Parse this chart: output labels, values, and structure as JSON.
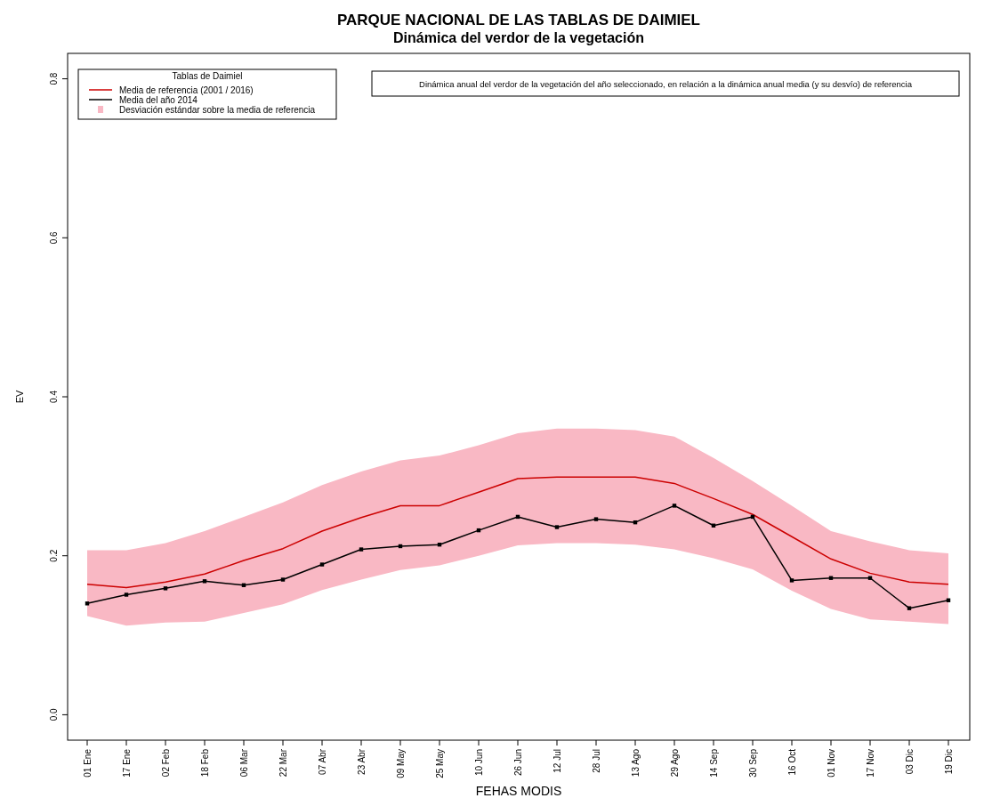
{
  "chart_data": {
    "type": "line",
    "title": "PARQUE NACIONAL DE LAS TABLAS DE DAIMIEL",
    "subtitle": "Dinámica del verdor de la vegetación",
    "xlabel": "FEHAS MODIS",
    "ylabel": "EV",
    "legend_title": "Tablas de Daimiel",
    "legend": "top left",
    "grid": false,
    "annotations": [
      "Dinámica anual del verdor de la vegetación del año seleccionado, en relación a la dinámica anual media (y su desvío) de referencia",
      "Desviación estándar sobre la media de referencia"
    ],
    "categories": [
      "01 Ene",
      "17 Ene",
      "02 Feb",
      "18 Feb",
      "06 Mar",
      "22 Mar",
      "07 Abr",
      "23 Abr",
      "09 May",
      "25 May",
      "10 Jun",
      "26 Jun",
      "12 Jul",
      "28 Jul",
      "13 Ago",
      "29 Ago",
      "14 Sep",
      "30 Sep",
      "16 Oct",
      "01 Nov",
      "17 Nov",
      "03 Dic",
      "19 Dic"
    ],
    "ylim": [
      -0.032,
      0.832
    ],
    "yticks": [
      {
        "value": 0,
        "label": "0.0"
      },
      0.2,
      0.4,
      0.6,
      0.8
    ],
    "series": [
      {
        "name": "Media de referencia (2001 / 2016)",
        "color": "#cc0000",
        "marker": "none",
        "values": [
          0.164,
          0.16,
          0.167,
          0.177,
          0.194,
          0.209,
          0.231,
          0.248,
          0.263,
          0.263,
          0.28,
          0.297,
          0.299,
          0.299,
          0.299,
          0.291,
          0.272,
          0.252,
          0.224,
          0.196,
          0.178,
          0.167,
          0.164
        ],
        "lower": [
          0.124,
          0.112,
          0.116,
          0.117,
          0.128,
          0.139,
          0.157,
          0.17,
          0.182,
          0.188,
          0.2,
          0.213,
          0.216,
          0.216,
          0.214,
          0.208,
          0.197,
          0.183,
          0.156,
          0.133,
          0.12,
          0.117,
          0.114
        ],
        "upper": [
          0.207,
          0.207,
          0.216,
          0.231,
          0.249,
          0.267,
          0.289,
          0.306,
          0.32,
          0.326,
          0.339,
          0.354,
          0.36,
          0.36,
          0.358,
          0.35,
          0.323,
          0.294,
          0.263,
          0.231,
          0.218,
          0.207,
          0.203
        ]
      },
      {
        "name": "Media del año 2014",
        "color": "#000000",
        "marker": "square",
        "values": [
          0.14,
          0.151,
          0.159,
          0.168,
          0.163,
          0.17,
          0.189,
          0.208,
          0.212,
          0.214,
          0.232,
          0.249,
          0.236,
          0.246,
          0.242,
          0.263,
          0.238,
          0.249,
          0.169,
          0.172,
          0.172,
          0.134,
          0.144
        ]
      }
    ]
  }
}
